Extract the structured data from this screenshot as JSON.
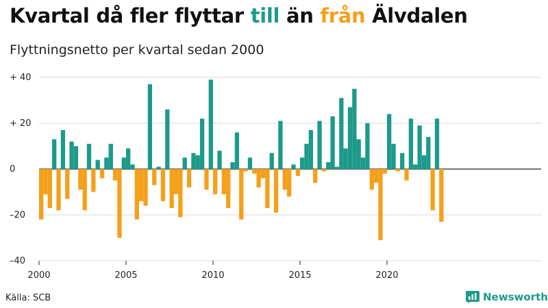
{
  "title": {
    "part1": "Kvartal då fler flyttar ",
    "word_till": "till",
    "part2": " än ",
    "word_fran": "från",
    "part3": " Älvdalen"
  },
  "subtitle": "Flyttningsnetto per kvartal sedan 2000",
  "source": "Källa: SCB",
  "brand": "Newsworthy",
  "colors": {
    "positive": "#1c9a8a",
    "negative": "#f5a01a",
    "grid": "#d9d9d9",
    "axis": "#222222"
  },
  "chart_data": {
    "type": "bar",
    "x_start": "2000 Q1",
    "values": [
      -22,
      -11,
      -17,
      13,
      -18,
      17,
      -13,
      12,
      10,
      -9,
      -18,
      11,
      -10,
      4,
      -4,
      5,
      11,
      -5,
      -30,
      5,
      9,
      2,
      -22,
      -14,
      -16,
      37,
      -7,
      1,
      -14,
      26,
      -17,
      -11,
      -21,
      5,
      -8,
      7,
      6,
      22,
      -9,
      39,
      -11,
      8,
      -11,
      -17,
      3,
      16,
      -22,
      -1,
      5,
      -2,
      -8,
      -4,
      -17,
      7,
      -19,
      21,
      -9,
      -12,
      2,
      -3,
      5,
      11,
      17,
      -6,
      21,
      -1,
      3,
      23,
      1,
      31,
      9,
      27,
      35,
      13,
      5,
      20,
      -9,
      -6,
      -31,
      -2,
      24,
      11,
      -1,
      7,
      -5,
      22,
      2,
      19,
      6,
      14,
      -18,
      22,
      -23
    ],
    "ylim": [
      -40,
      40
    ],
    "y_ticks": [
      {
        "value": 40,
        "label": "+ 40"
      },
      {
        "value": 20,
        "label": "+ 20"
      },
      {
        "value": 0,
        "label": "0"
      },
      {
        "value": -20,
        "label": "–20"
      },
      {
        "value": -40,
        "label": "–40"
      }
    ],
    "x_ticks": [
      {
        "year": 2000,
        "label": "2000"
      },
      {
        "year": 2005,
        "label": "2005"
      },
      {
        "year": 2010,
        "label": "2010"
      },
      {
        "year": 2015,
        "label": "2015"
      },
      {
        "year": 2020,
        "label": "2020"
      }
    ],
    "grid": true
  }
}
